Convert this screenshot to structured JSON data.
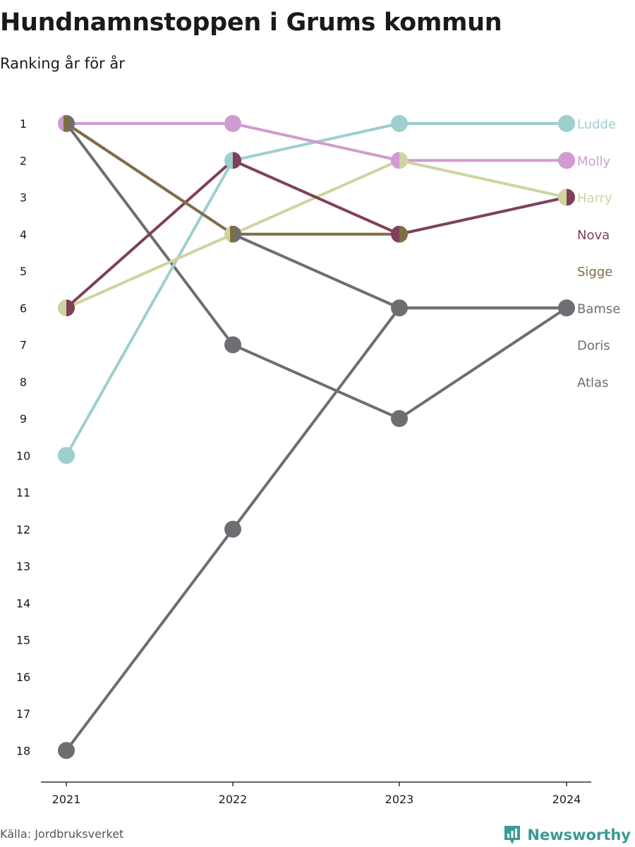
{
  "chart_data": {
    "type": "line",
    "title": "Hundnamnstoppen i Grums kommun",
    "subtitle": "Ranking år för år",
    "x": [
      "2021",
      "2022",
      "2023",
      "2024"
    ],
    "yticks": [
      1,
      2,
      3,
      4,
      5,
      6,
      7,
      8,
      9,
      10,
      11,
      12,
      13,
      14,
      15,
      16,
      17,
      18
    ],
    "ylim": [
      1,
      18
    ],
    "y_reversed": true,
    "grid": false,
    "legend": "labels at right end",
    "series": [
      {
        "name": "Ludde",
        "color": "#9dcfce",
        "values": [
          10,
          2,
          1,
          1
        ]
      },
      {
        "name": "Molly",
        "color": "#cf9bd1",
        "values": [
          1,
          1,
          2,
          2
        ]
      },
      {
        "name": "Harry",
        "color": "#cfd3a0",
        "values": [
          6,
          4,
          2,
          3
        ]
      },
      {
        "name": "Nova",
        "color": "#7f4058",
        "values": [
          6,
          2,
          4,
          3
        ]
      },
      {
        "name": "Sigge",
        "color": "#7f6e45",
        "values": [
          1,
          4,
          4,
          null
        ]
      },
      {
        "name": "Bamse",
        "color": "#6e6d72",
        "values": [
          18,
          12,
          6,
          6
        ]
      },
      {
        "name": "Doris",
        "color": "#6e6d72",
        "values": [
          1,
          4,
          6,
          6
        ]
      },
      {
        "name": "Atlas",
        "color": "#6e6d72",
        "values": [
          1,
          7,
          9,
          6
        ]
      }
    ]
  },
  "footer": {
    "source": "Källa: Jordbruksverket",
    "brand": "Newsworthy",
    "brand_icon": "bar-chart-icon",
    "brand_color": "#3a9a94"
  }
}
